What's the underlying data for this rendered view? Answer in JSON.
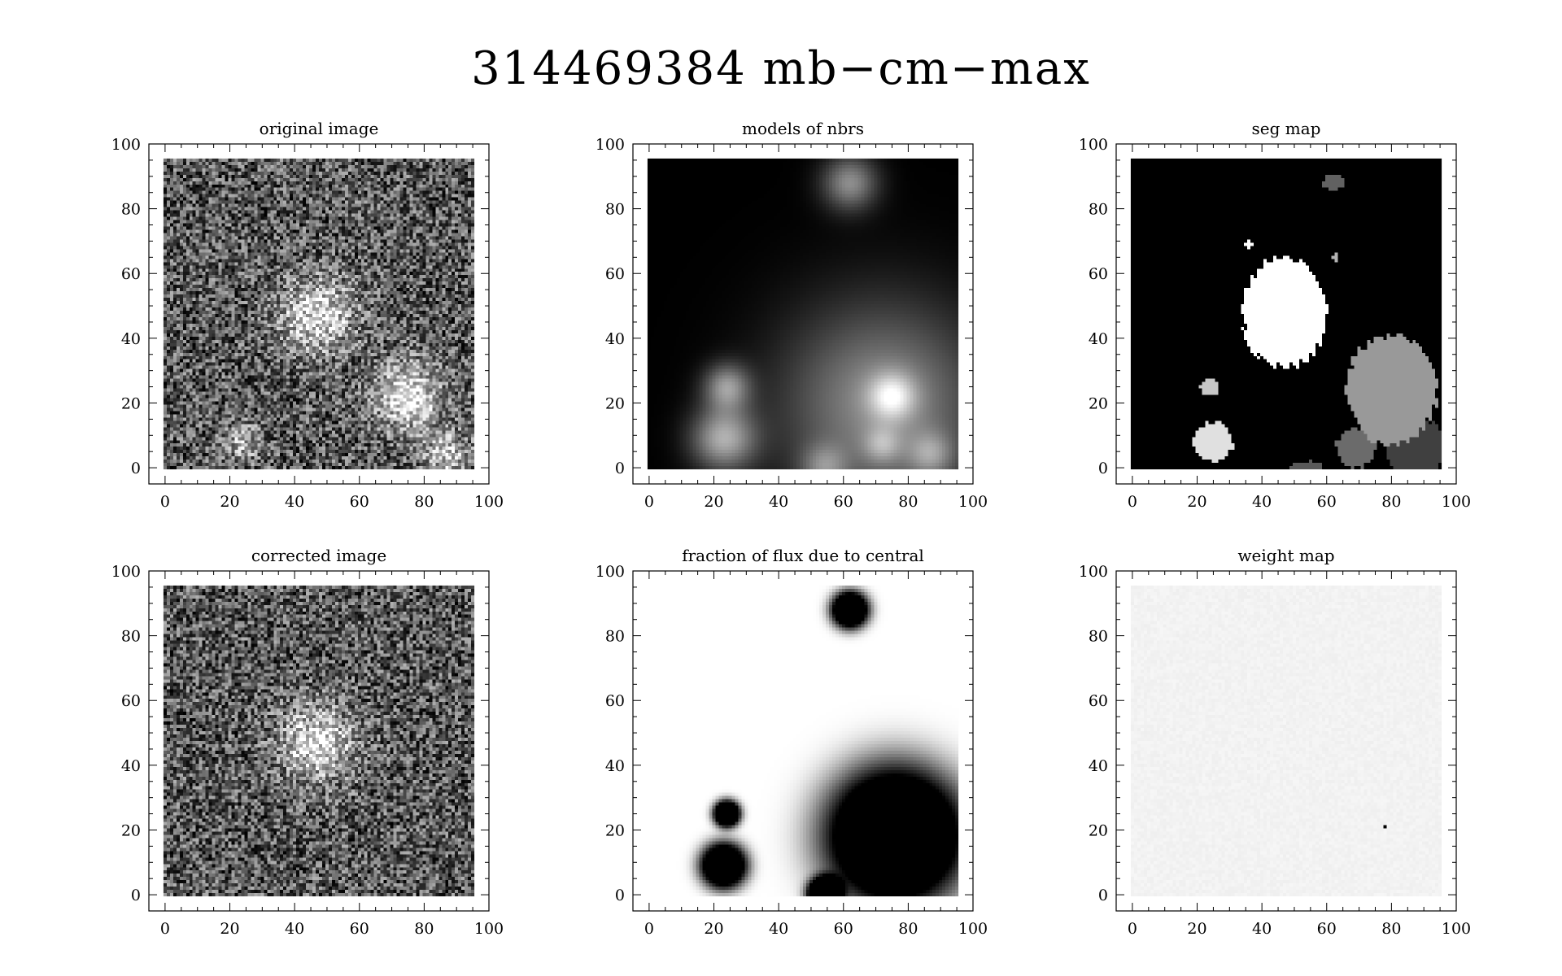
{
  "figure": {
    "title": "314469384 mb−cm−max"
  },
  "chart_data": [
    {
      "type": "heatmap",
      "title": "original image",
      "xlabel": "",
      "ylabel": "",
      "xlim": [
        -5,
        100
      ],
      "ylim": [
        -5,
        100
      ],
      "xticks": [
        "0",
        "20",
        "40",
        "60",
        "80",
        "100"
      ],
      "yticks": [
        "0",
        "20",
        "40",
        "60",
        "80",
        "100"
      ],
      "image_extent": [
        0,
        95,
        0,
        95
      ],
      "colormap": "gray",
      "render": "noisy",
      "background_level": 0.35,
      "noise": 0.35,
      "sources": [
        {
          "x": 47,
          "y": 47,
          "sigma": 8,
          "amp": 0.55
        },
        {
          "x": 75,
          "y": 22,
          "sigma": 7,
          "amp": 0.6
        },
        {
          "x": 87,
          "y": 4,
          "sigma": 5,
          "amp": 0.45
        },
        {
          "x": 24,
          "y": 8,
          "sigma": 4,
          "amp": 0.35
        }
      ]
    },
    {
      "type": "heatmap",
      "title": "models of nbrs",
      "xlabel": "",
      "ylabel": "",
      "xlim": [
        -5,
        100
      ],
      "ylim": [
        -5,
        100
      ],
      "xticks": [
        "0",
        "20",
        "40",
        "60",
        "80",
        "100"
      ],
      "yticks": [
        "0",
        "20",
        "40",
        "60",
        "80",
        "100"
      ],
      "image_extent": [
        0,
        95,
        0,
        95
      ],
      "colormap": "gray",
      "render": "smooth",
      "sources": [
        {
          "x": 62,
          "y": 88,
          "sigma": 6,
          "amp": 0.55
        },
        {
          "x": 72,
          "y": 20,
          "sigma": 22,
          "amp": 0.55
        },
        {
          "x": 75,
          "y": 22,
          "sigma": 5,
          "amp": 0.5
        },
        {
          "x": 24,
          "y": 25,
          "sigma": 5,
          "amp": 0.55
        },
        {
          "x": 23,
          "y": 9,
          "sigma": 7,
          "amp": 0.65
        },
        {
          "x": 72,
          "y": 7,
          "sigma": 4,
          "amp": 0.3
        },
        {
          "x": 87,
          "y": 4,
          "sigma": 5,
          "amp": 0.35
        },
        {
          "x": 54,
          "y": 0,
          "sigma": 5,
          "amp": 0.35
        }
      ]
    },
    {
      "type": "heatmap",
      "title": "seg map",
      "xlabel": "",
      "ylabel": "",
      "xlim": [
        -5,
        100
      ],
      "ylim": [
        -5,
        100
      ],
      "xticks": [
        "0",
        "20",
        "40",
        "60",
        "80",
        "100"
      ],
      "yticks": [
        "0",
        "20",
        "40",
        "60",
        "80",
        "100"
      ],
      "image_extent": [
        0,
        95,
        0,
        95
      ],
      "colormap": "gray",
      "render": "segments",
      "segments": [
        {
          "cx": 47,
          "cy": 48,
          "rx": 13,
          "ry": 17,
          "level": 1.0
        },
        {
          "cx": 80,
          "cy": 24,
          "rx": 14,
          "ry": 17,
          "level": 0.6
        },
        {
          "cx": 25,
          "cy": 8,
          "rx": 6,
          "ry": 6,
          "level": 0.88
        },
        {
          "cx": 87,
          "cy": 6,
          "rx": 9,
          "ry": 10,
          "level": 0.25
        },
        {
          "cx": 69,
          "cy": 6,
          "rx": 6,
          "ry": 6,
          "level": 0.42
        },
        {
          "cx": 62,
          "cy": 88,
          "rx": 3.5,
          "ry": 2.5,
          "level": 0.38
        },
        {
          "cx": 24,
          "cy": 25,
          "rx": 3,
          "ry": 2.5,
          "level": 0.78
        },
        {
          "cx": 36,
          "cy": 69,
          "rx": 1.2,
          "ry": 1.5,
          "level": 1.0
        },
        {
          "cx": 63,
          "cy": 65,
          "rx": 1,
          "ry": 1.3,
          "level": 0.7
        },
        {
          "cx": 54,
          "cy": 0,
          "rx": 5,
          "ry": 2,
          "level": 0.35
        }
      ]
    },
    {
      "type": "heatmap",
      "title": "corrected image",
      "xlabel": "",
      "ylabel": "",
      "xlim": [
        -5,
        100
      ],
      "ylim": [
        -5,
        100
      ],
      "xticks": [
        "0",
        "20",
        "40",
        "60",
        "80",
        "100"
      ],
      "yticks": [
        "0",
        "20",
        "40",
        "60",
        "80",
        "100"
      ],
      "image_extent": [
        0,
        95,
        0,
        95
      ],
      "colormap": "gray",
      "render": "noisy",
      "background_level": 0.35,
      "noise": 0.35,
      "sources": [
        {
          "x": 47,
          "y": 47,
          "sigma": 8,
          "amp": 0.55
        }
      ]
    },
    {
      "type": "heatmap",
      "title": "fraction of flux due to central",
      "xlabel": "",
      "ylabel": "",
      "xlim": [
        -5,
        100
      ],
      "ylim": [
        -5,
        100
      ],
      "xticks": [
        "0",
        "20",
        "40",
        "60",
        "80",
        "100"
      ],
      "yticks": [
        "0",
        "20",
        "40",
        "60",
        "80",
        "100"
      ],
      "image_extent": [
        0,
        95,
        0,
        95
      ],
      "colormap": "gray",
      "render": "fraction",
      "sources": [
        {
          "x": 62,
          "y": 88,
          "sigma": 4.5,
          "amp": 1.6
        },
        {
          "x": 76,
          "y": 18,
          "sigma": 17,
          "amp": 1.6
        },
        {
          "x": 24,
          "y": 25,
          "sigma": 3.2,
          "amp": 1.6
        },
        {
          "x": 23,
          "y": 9,
          "sigma": 5.5,
          "amp": 1.6
        },
        {
          "x": 54,
          "y": 0,
          "sigma": 4,
          "amp": 1.6
        }
      ]
    },
    {
      "type": "heatmap",
      "title": "weight map",
      "xlabel": "",
      "ylabel": "",
      "xlim": [
        -5,
        100
      ],
      "ylim": [
        -5,
        100
      ],
      "xticks": [
        "0",
        "20",
        "40",
        "60",
        "80",
        "100"
      ],
      "yticks": [
        "0",
        "20",
        "40",
        "60",
        "80",
        "100"
      ],
      "image_extent": [
        0,
        95,
        0,
        95
      ],
      "colormap": "gray",
      "render": "flat",
      "level": 0.95,
      "noise": 0.015,
      "dead_pixels": [
        {
          "x": 78,
          "y": 21
        }
      ]
    }
  ]
}
